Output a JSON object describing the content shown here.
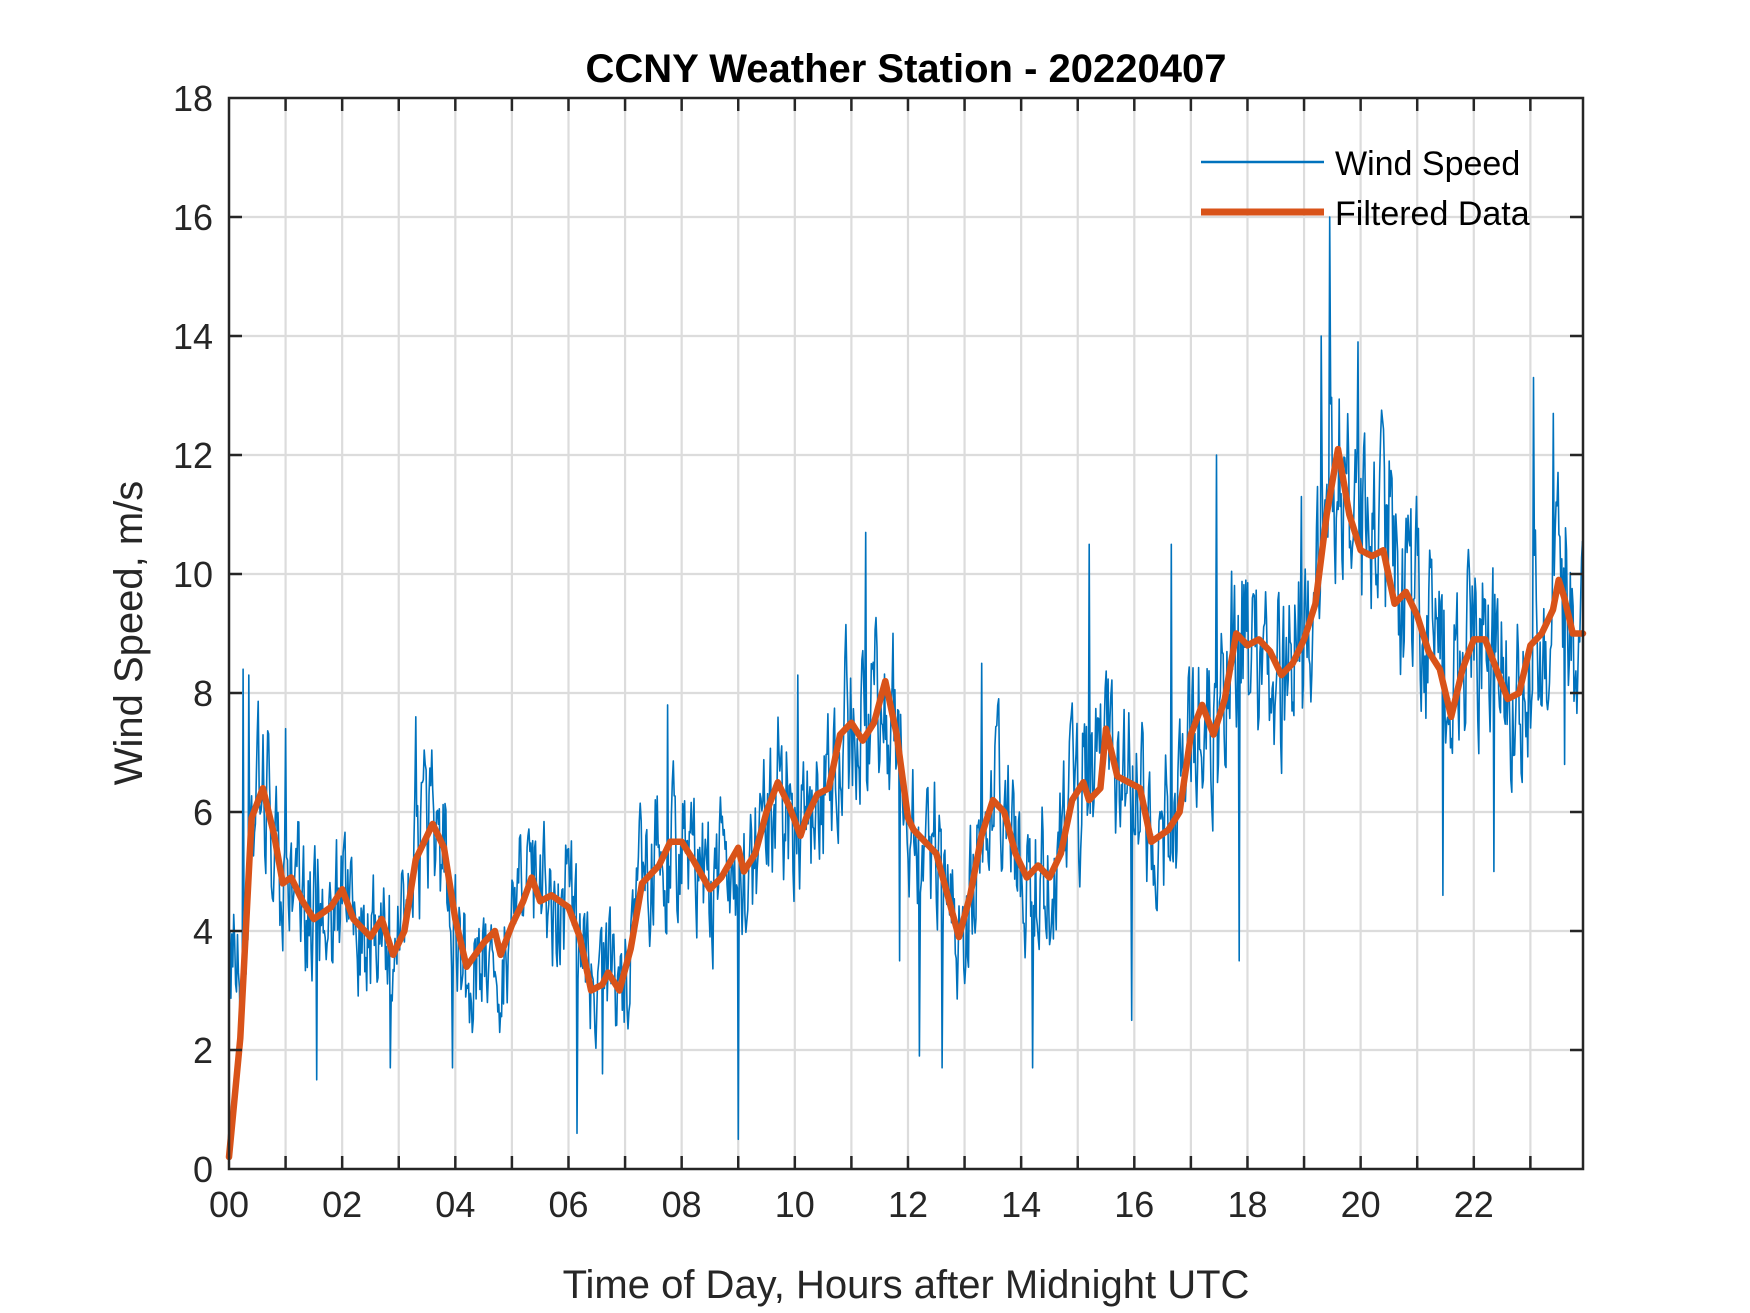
{
  "chart_data": {
    "type": "line",
    "title": "CCNY Weather Station - 20220407",
    "xlabel": "Time of Day, Hours after Midnight UTC",
    "ylabel": "Wind Speed, m/s",
    "xlim": [
      0,
      23.93
    ],
    "ylim": [
      0,
      18
    ],
    "grid": true,
    "legend_position": "top-right",
    "x_ticks": [
      0,
      2,
      4,
      6,
      8,
      10,
      12,
      14,
      16,
      18,
      20,
      22
    ],
    "x_tick_labels": [
      "00",
      "02",
      "04",
      "06",
      "08",
      "10",
      "12",
      "14",
      "16",
      "18",
      "20",
      "22"
    ],
    "x_minor_ticks_every": 1,
    "y_ticks": [
      0,
      2,
      4,
      6,
      8,
      10,
      12,
      14,
      16,
      18
    ],
    "y_tick_labels": [
      "0",
      "2",
      "4",
      "6",
      "8",
      "10",
      "12",
      "14",
      "16",
      "18"
    ],
    "series": [
      {
        "name": "Wind Speed",
        "color": "#0072BD",
        "style": "thin",
        "sample_interval_hours": 0.01667,
        "noise_amplitude": 1.6,
        "notable_points": [
          {
            "x": 0.25,
            "y": 8.4
          },
          {
            "x": 0.35,
            "y": 8.3
          },
          {
            "x": 1.0,
            "y": 7.4
          },
          {
            "x": 1.55,
            "y": 1.5
          },
          {
            "x": 2.85,
            "y": 1.7
          },
          {
            "x": 3.3,
            "y": 7.6
          },
          {
            "x": 3.95,
            "y": 1.7
          },
          {
            "x": 6.15,
            "y": 0.6
          },
          {
            "x": 6.6,
            "y": 1.6
          },
          {
            "x": 7.75,
            "y": 7.8
          },
          {
            "x": 9.0,
            "y": 0.5
          },
          {
            "x": 10.05,
            "y": 8.3
          },
          {
            "x": 11.25,
            "y": 10.7
          },
          {
            "x": 11.85,
            "y": 3.5
          },
          {
            "x": 12.2,
            "y": 1.9
          },
          {
            "x": 12.6,
            "y": 1.7
          },
          {
            "x": 13.3,
            "y": 8.5
          },
          {
            "x": 14.2,
            "y": 1.7
          },
          {
            "x": 15.2,
            "y": 10.5
          },
          {
            "x": 15.95,
            "y": 2.5
          },
          {
            "x": 16.65,
            "y": 10.5
          },
          {
            "x": 17.45,
            "y": 12.0
          },
          {
            "x": 17.85,
            "y": 3.5
          },
          {
            "x": 18.95,
            "y": 11.3
          },
          {
            "x": 19.3,
            "y": 14.0
          },
          {
            "x": 19.45,
            "y": 16.0
          },
          {
            "x": 19.95,
            "y": 13.9
          },
          {
            "x": 20.5,
            "y": 11.9
          },
          {
            "x": 21.45,
            "y": 4.6
          },
          {
            "x": 22.35,
            "y": 5.0
          },
          {
            "x": 23.05,
            "y": 13.3
          },
          {
            "x": 23.4,
            "y": 12.7
          },
          {
            "x": 23.6,
            "y": 6.8
          }
        ]
      },
      {
        "name": "Filtered Data",
        "color": "#D95319",
        "style": "thick",
        "x": [
          0,
          0.2,
          0.4,
          0.6,
          0.8,
          0.95,
          1.1,
          1.3,
          1.5,
          1.8,
          2.0,
          2.2,
          2.5,
          2.7,
          2.9,
          3.1,
          3.3,
          3.6,
          3.8,
          4.0,
          4.2,
          4.5,
          4.7,
          4.8,
          5.0,
          5.2,
          5.35,
          5.5,
          5.7,
          6.0,
          6.2,
          6.4,
          6.6,
          6.7,
          6.9,
          7.1,
          7.3,
          7.6,
          7.8,
          8.0,
          8.2,
          8.5,
          8.7,
          9.0,
          9.1,
          9.3,
          9.5,
          9.7,
          9.9,
          10.1,
          10.2,
          10.4,
          10.6,
          10.8,
          11.0,
          11.2,
          11.4,
          11.6,
          11.8,
          12.0,
          12.1,
          12.3,
          12.5,
          12.7,
          12.9,
          13.1,
          13.3,
          13.5,
          13.7,
          13.9,
          14.1,
          14.3,
          14.5,
          14.7,
          14.9,
          15.1,
          15.2,
          15.4,
          15.5,
          15.7,
          15.9,
          16.1,
          16.3,
          16.6,
          16.8,
          17.0,
          17.2,
          17.4,
          17.6,
          17.8,
          18.0,
          18.2,
          18.4,
          18.6,
          18.8,
          19.0,
          19.2,
          19.4,
          19.6,
          19.8,
          20.0,
          20.2,
          20.4,
          20.6,
          20.8,
          21.0,
          21.2,
          21.4,
          21.6,
          21.8,
          22.0,
          22.2,
          22.4,
          22.6,
          22.8,
          23.0,
          23.2,
          23.4,
          23.5,
          23.6,
          23.75,
          23.93
        ],
        "values": [
          0.2,
          2.2,
          5.9,
          6.4,
          5.6,
          4.8,
          4.9,
          4.5,
          4.2,
          4.4,
          4.7,
          4.2,
          3.9,
          4.2,
          3.6,
          4.0,
          5.2,
          5.8,
          5.4,
          4.2,
          3.4,
          3.8,
          4.0,
          3.6,
          4.1,
          4.5,
          4.9,
          4.5,
          4.6,
          4.4,
          3.9,
          3.0,
          3.1,
          3.3,
          3.0,
          3.7,
          4.8,
          5.1,
          5.5,
          5.5,
          5.2,
          4.7,
          4.9,
          5.4,
          5.0,
          5.3,
          6.0,
          6.5,
          6.1,
          5.6,
          5.9,
          6.3,
          6.4,
          7.3,
          7.5,
          7.2,
          7.5,
          8.2,
          7.3,
          5.9,
          5.7,
          5.5,
          5.3,
          4.6,
          3.9,
          4.6,
          5.6,
          6.2,
          6.0,
          5.3,
          4.9,
          5.1,
          4.9,
          5.3,
          6.2,
          6.5,
          6.2,
          6.4,
          7.4,
          6.6,
          6.5,
          6.4,
          5.5,
          5.7,
          6.0,
          7.3,
          7.8,
          7.3,
          7.9,
          9.0,
          8.8,
          8.9,
          8.7,
          8.3,
          8.5,
          8.9,
          9.5,
          11.0,
          12.1,
          11.0,
          10.4,
          10.3,
          10.4,
          9.5,
          9.7,
          9.3,
          8.7,
          8.4,
          7.6,
          8.4,
          8.9,
          8.9,
          8.4,
          7.9,
          8.0,
          8.8,
          9.0,
          9.4,
          9.9,
          9.6,
          9.0,
          9.0
        ]
      }
    ]
  }
}
